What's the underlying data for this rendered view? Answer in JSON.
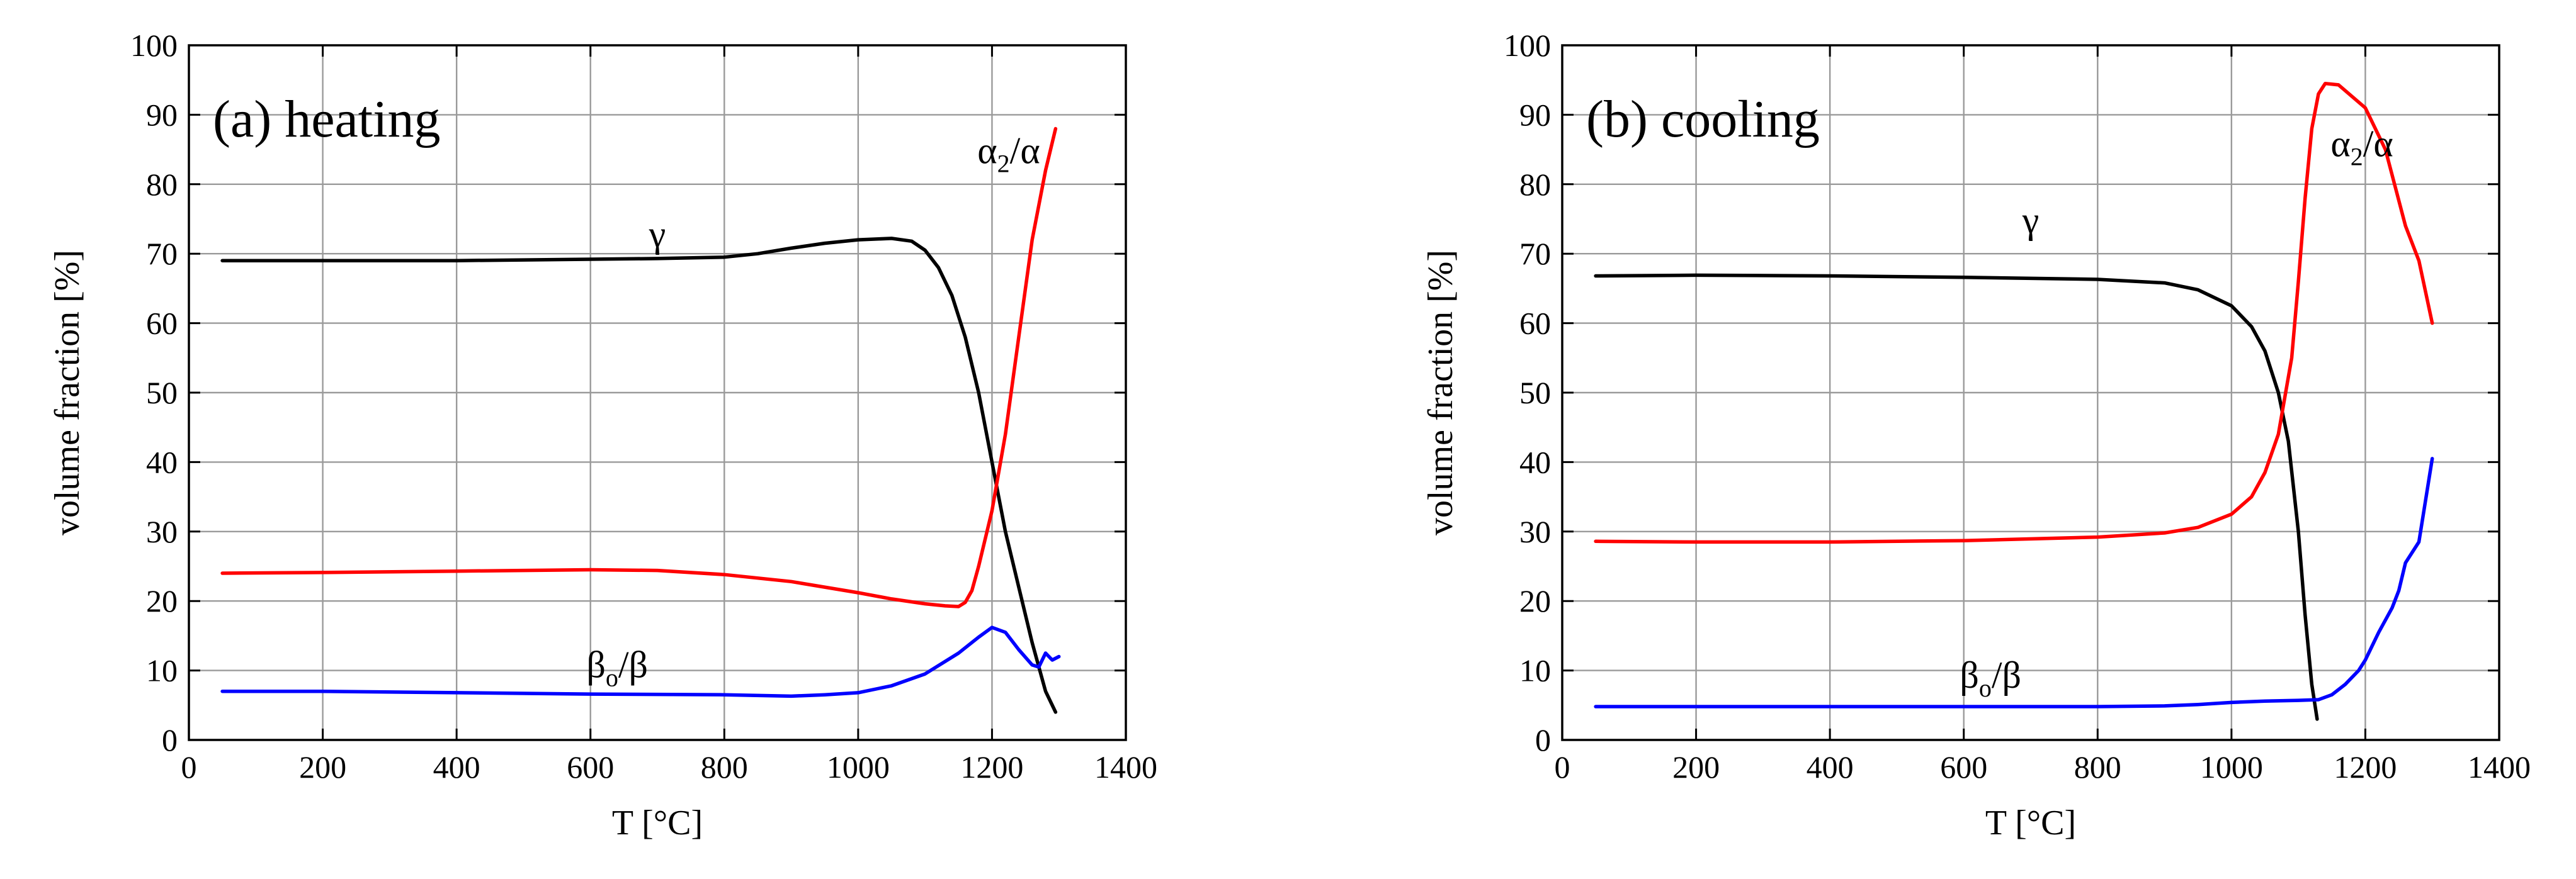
{
  "chart_data": [
    {
      "type": "line",
      "title": "(a) heating",
      "xlabel": "T [°C]",
      "ylabel": "volume fraction [%]",
      "xlim": [
        0,
        1400
      ],
      "ylim": [
        0,
        100
      ],
      "xticks": [
        "0",
        "200",
        "400",
        "600",
        "800",
        "1000",
        "1200",
        "1400"
      ],
      "yticks": [
        "0",
        "10",
        "20",
        "30",
        "40",
        "50",
        "60",
        "70",
        "80",
        "90",
        "100"
      ],
      "grid": true,
      "series": [
        {
          "name": "γ",
          "color": "#000000",
          "x": [
            50,
            200,
            400,
            600,
            700,
            800,
            850,
            900,
            950,
            1000,
            1050,
            1080,
            1100,
            1120,
            1140,
            1160,
            1180,
            1200,
            1220,
            1240,
            1260,
            1280,
            1295
          ],
          "y": [
            69,
            69,
            69,
            69.2,
            69.3,
            69.5,
            70,
            70.8,
            71.5,
            72,
            72.2,
            71.8,
            70.5,
            68,
            64,
            58,
            50,
            40,
            30,
            22,
            14,
            7,
            4
          ]
        },
        {
          "name": "α2/α",
          "color": "#ff0000",
          "x": [
            50,
            200,
            400,
            600,
            700,
            800,
            900,
            1000,
            1050,
            1100,
            1130,
            1150,
            1160,
            1170,
            1180,
            1200,
            1220,
            1240,
            1260,
            1280,
            1295
          ],
          "y": [
            24,
            24.1,
            24.3,
            24.5,
            24.4,
            23.8,
            22.8,
            21.2,
            20.3,
            19.6,
            19.3,
            19.2,
            19.8,
            21.5,
            25,
            33,
            44,
            58,
            72,
            82,
            88
          ]
        },
        {
          "name": "βo/β",
          "color": "#0000ff",
          "x": [
            50,
            200,
            400,
            600,
            800,
            900,
            950,
            1000,
            1050,
            1100,
            1150,
            1180,
            1200,
            1220,
            1240,
            1260,
            1270,
            1280,
            1290,
            1300
          ],
          "y": [
            7,
            7,
            6.8,
            6.6,
            6.5,
            6.3,
            6.5,
            6.8,
            7.8,
            9.5,
            12.5,
            14.8,
            16.2,
            15.5,
            13,
            10.8,
            10.5,
            12.5,
            11.5,
            12
          ]
        }
      ],
      "annotations": [
        {
          "text": "γ",
          "x": 700,
          "y": 71
        },
        {
          "text": "α",
          "sub": "2",
          "tail": "/α",
          "x": 1225,
          "y": 83
        },
        {
          "text": "β",
          "sub": "o",
          "tail": "/β",
          "x": 640,
          "y": 9
        }
      ]
    },
    {
      "type": "line",
      "title": "(b) cooling",
      "xlabel": "T [°C]",
      "ylabel": "volume fraction [%]",
      "xlim": [
        0,
        1400
      ],
      "ylim": [
        0,
        100
      ],
      "xticks": [
        "0",
        "200",
        "400",
        "600",
        "800",
        "1000",
        "1200",
        "1400"
      ],
      "yticks": [
        "0",
        "10",
        "20",
        "30",
        "40",
        "50",
        "60",
        "70",
        "80",
        "90",
        "100"
      ],
      "grid": true,
      "series": [
        {
          "name": "γ",
          "color": "#000000",
          "x": [
            50,
            200,
            400,
            600,
            800,
            900,
            950,
            1000,
            1030,
            1050,
            1070,
            1085,
            1100,
            1110,
            1120,
            1128
          ],
          "y": [
            66.8,
            66.9,
            66.8,
            66.6,
            66.3,
            65.8,
            64.8,
            62.5,
            59.5,
            56,
            50,
            43,
            30,
            18,
            8,
            3
          ]
        },
        {
          "name": "α2/α",
          "color": "#ff0000",
          "x": [
            50,
            200,
            400,
            600,
            800,
            900,
            950,
            1000,
            1030,
            1050,
            1070,
            1090,
            1100,
            1110,
            1120,
            1130,
            1140,
            1160,
            1200,
            1230,
            1260,
            1280,
            1300
          ],
          "y": [
            28.6,
            28.5,
            28.5,
            28.7,
            29.2,
            29.8,
            30.6,
            32.5,
            35,
            38.5,
            44,
            55,
            66,
            78,
            88,
            93,
            94.5,
            94.3,
            91,
            85,
            74,
            69,
            60
          ]
        },
        {
          "name": "βo/β",
          "color": "#0000ff",
          "x": [
            50,
            200,
            400,
            600,
            800,
            900,
            950,
            1000,
            1050,
            1100,
            1130,
            1150,
            1170,
            1190,
            1200,
            1220,
            1240,
            1250,
            1260,
            1280,
            1300
          ],
          "y": [
            4.8,
            4.8,
            4.8,
            4.8,
            4.8,
            4.9,
            5.1,
            5.4,
            5.6,
            5.7,
            5.8,
            6.5,
            8,
            10,
            11.5,
            15.5,
            19,
            21.5,
            25.5,
            28.5,
            40.5
          ]
        }
      ],
      "annotations": [
        {
          "text": "γ",
          "x": 700,
          "y": 73
        },
        {
          "text": "α",
          "sub": "2",
          "tail": "/α",
          "x": 1195,
          "y": 84
        },
        {
          "text": "β",
          "sub": "o",
          "tail": "/β",
          "x": 640,
          "y": 7.5
        }
      ]
    }
  ]
}
